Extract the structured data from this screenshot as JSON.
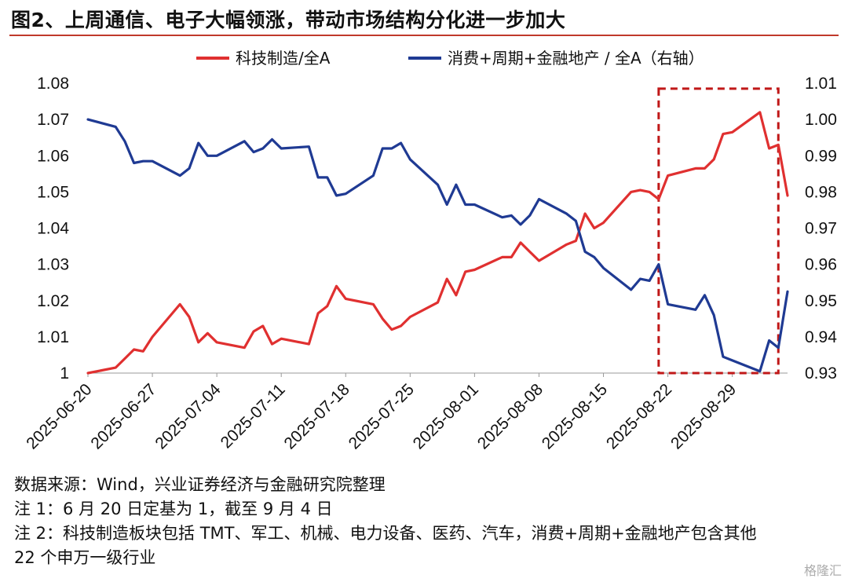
{
  "title": "图2、上周通信、电子大幅领涨，带动市场结构分化进一步加大",
  "notes": [
    "数据来源：Wind，兴业证券经济与金融研究院整理",
    "注 1：6 月 20 日定基为 1，截至 9 月 4 日",
    "注 2：科技制造板块包括 TMT、军工、机械、电力设备、医药、汽车，消费+周期+金融地产包含其他",
    "22 个申万一级行业"
  ],
  "corner_logo": "格隆汇",
  "colors": {
    "tech": "#e03030",
    "consumer": "#1f3a93",
    "box": "#c01818"
  },
  "chart_data": {
    "type": "line",
    "title": "",
    "legend_position": "top",
    "x_ticks": [
      "2025-06-20",
      "2025-06-27",
      "2025-07-04",
      "2025-07-11",
      "2025-07-18",
      "2025-07-25",
      "2025-08-01",
      "2025-08-08",
      "2025-08-15",
      "2025-08-22",
      "2025-08-29"
    ],
    "y_left": {
      "min": 1.0,
      "max": 1.08,
      "ticks": [
        "1",
        "1.01",
        "1.02",
        "1.03",
        "1.04",
        "1.05",
        "1.06",
        "1.07",
        "1.08"
      ]
    },
    "y_right": {
      "min": 0.93,
      "max": 1.01,
      "ticks": [
        "0.93",
        "0.94",
        "0.95",
        "0.96",
        "0.97",
        "0.98",
        "0.99",
        "1.00",
        "1.01"
      ]
    },
    "highlight_box": {
      "x_from": "2025-08-21",
      "x_to": "2025-09-03",
      "y_from": 1.0,
      "y_to": 1.0785
    },
    "series": [
      {
        "name": "科技制造/全A",
        "axis": "left",
        "points": [
          [
            "2025-06-20",
            1.0
          ],
          [
            "2025-06-23",
            1.0015
          ],
          [
            "2025-06-24",
            1.004
          ],
          [
            "2025-06-25",
            1.0065
          ],
          [
            "2025-06-26",
            1.006
          ],
          [
            "2025-06-27",
            1.01
          ],
          [
            "2025-06-30",
            1.019
          ],
          [
            "2025-07-01",
            1.0155
          ],
          [
            "2025-07-02",
            1.0085
          ],
          [
            "2025-07-03",
            1.011
          ],
          [
            "2025-07-04",
            1.0085
          ],
          [
            "2025-07-07",
            1.007
          ],
          [
            "2025-07-08",
            1.0115
          ],
          [
            "2025-07-09",
            1.013
          ],
          [
            "2025-07-10",
            1.008
          ],
          [
            "2025-07-11",
            1.0095
          ],
          [
            "2025-07-14",
            1.008
          ],
          [
            "2025-07-15",
            1.0165
          ],
          [
            "2025-07-16",
            1.0185
          ],
          [
            "2025-07-17",
            1.024
          ],
          [
            "2025-07-18",
            1.0205
          ],
          [
            "2025-07-21",
            1.019
          ],
          [
            "2025-07-22",
            1.015
          ],
          [
            "2025-07-23",
            1.012
          ],
          [
            "2025-07-24",
            1.013
          ],
          [
            "2025-07-25",
            1.0155
          ],
          [
            "2025-07-28",
            1.0195
          ],
          [
            "2025-07-29",
            1.026
          ],
          [
            "2025-07-30",
            1.0215
          ],
          [
            "2025-07-31",
            1.028
          ],
          [
            "2025-08-01",
            1.0285
          ],
          [
            "2025-08-04",
            1.032
          ],
          [
            "2025-08-05",
            1.032
          ],
          [
            "2025-08-06",
            1.036
          ],
          [
            "2025-08-07",
            1.0335
          ],
          [
            "2025-08-08",
            1.031
          ],
          [
            "2025-08-11",
            1.0355
          ],
          [
            "2025-08-12",
            1.0365
          ],
          [
            "2025-08-13",
            1.044
          ],
          [
            "2025-08-14",
            1.04
          ],
          [
            "2025-08-15",
            1.0415
          ],
          [
            "2025-08-18",
            1.05
          ],
          [
            "2025-08-19",
            1.0505
          ],
          [
            "2025-08-20",
            1.05
          ],
          [
            "2025-08-21",
            1.048
          ],
          [
            "2025-08-22",
            1.0545
          ],
          [
            "2025-08-25",
            1.0565
          ],
          [
            "2025-08-26",
            1.0565
          ],
          [
            "2025-08-27",
            1.059
          ],
          [
            "2025-08-28",
            1.066
          ],
          [
            "2025-08-29",
            1.0665
          ],
          [
            "2025-09-01",
            1.072
          ],
          [
            "2025-09-02",
            1.062
          ],
          [
            "2025-09-03",
            1.063
          ],
          [
            "2025-09-04",
            1.049
          ]
        ]
      },
      {
        "name": "消费+周期+金融地产 / 全A（右轴）",
        "axis": "right",
        "points": [
          [
            "2025-06-20",
            1.0
          ],
          [
            "2025-06-23",
            0.998
          ],
          [
            "2025-06-24",
            0.994
          ],
          [
            "2025-06-25",
            0.988
          ],
          [
            "2025-06-26",
            0.9885
          ],
          [
            "2025-06-27",
            0.9885
          ],
          [
            "2025-06-30",
            0.9845
          ],
          [
            "2025-07-01",
            0.9865
          ],
          [
            "2025-07-02",
            0.9935
          ],
          [
            "2025-07-03",
            0.99
          ],
          [
            "2025-07-04",
            0.99
          ],
          [
            "2025-07-07",
            0.994
          ],
          [
            "2025-07-08",
            0.991
          ],
          [
            "2025-07-09",
            0.992
          ],
          [
            "2025-07-10",
            0.9945
          ],
          [
            "2025-07-11",
            0.992
          ],
          [
            "2025-07-14",
            0.9925
          ],
          [
            "2025-07-15",
            0.984
          ],
          [
            "2025-07-16",
            0.984
          ],
          [
            "2025-07-17",
            0.979
          ],
          [
            "2025-07-18",
            0.9795
          ],
          [
            "2025-07-21",
            0.9845
          ],
          [
            "2025-07-22",
            0.992
          ],
          [
            "2025-07-23",
            0.992
          ],
          [
            "2025-07-24",
            0.9935
          ],
          [
            "2025-07-25",
            0.989
          ],
          [
            "2025-07-28",
            0.982
          ],
          [
            "2025-07-29",
            0.9765
          ],
          [
            "2025-07-30",
            0.982
          ],
          [
            "2025-07-31",
            0.9765
          ],
          [
            "2025-08-01",
            0.9765
          ],
          [
            "2025-08-04",
            0.973
          ],
          [
            "2025-08-05",
            0.9735
          ],
          [
            "2025-08-06",
            0.971
          ],
          [
            "2025-08-07",
            0.9735
          ],
          [
            "2025-08-08",
            0.978
          ],
          [
            "2025-08-11",
            0.974
          ],
          [
            "2025-08-12",
            0.972
          ],
          [
            "2025-08-13",
            0.9635
          ],
          [
            "2025-08-14",
            0.962
          ],
          [
            "2025-08-15",
            0.959
          ],
          [
            "2025-08-18",
            0.953
          ],
          [
            "2025-08-19",
            0.956
          ],
          [
            "2025-08-20",
            0.9555
          ],
          [
            "2025-08-21",
            0.96
          ],
          [
            "2025-08-22",
            0.949
          ],
          [
            "2025-08-25",
            0.9475
          ],
          [
            "2025-08-26",
            0.9515
          ],
          [
            "2025-08-27",
            0.946
          ],
          [
            "2025-08-28",
            0.9345
          ],
          [
            "2025-08-29",
            0.9335
          ],
          [
            "2025-09-01",
            0.9305
          ],
          [
            "2025-09-02",
            0.939
          ],
          [
            "2025-09-03",
            0.937
          ],
          [
            "2025-09-04",
            0.9525
          ]
        ]
      }
    ]
  }
}
